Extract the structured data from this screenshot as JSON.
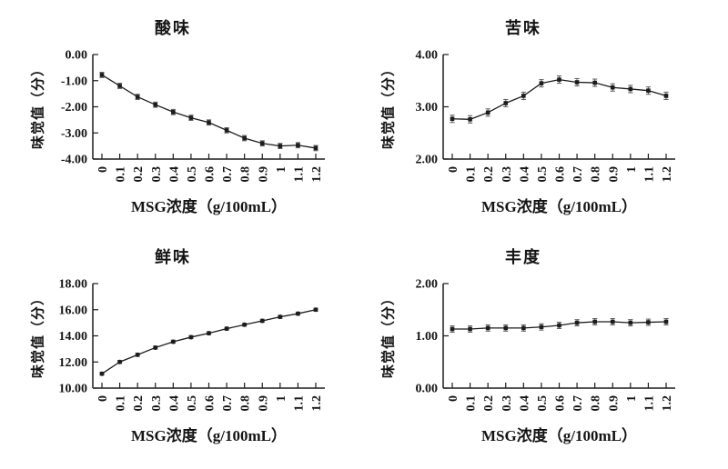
{
  "page": {
    "background": "#ffffff",
    "text_color": "#141414"
  },
  "chart_data": [
    {
      "type": "line",
      "title": "酸味",
      "xlabel": "MSG浓度（g/100mL）",
      "ylabel": "味觉值（分）",
      "x": [
        "0",
        "0.1",
        "0.2",
        "0.3",
        "0.4",
        "0.5",
        "0.6",
        "0.7",
        "0.8",
        "0.9",
        "1",
        "1.1",
        "1.2"
      ],
      "values": [
        -0.78,
        -1.2,
        -1.62,
        -1.92,
        -2.2,
        -2.42,
        -2.6,
        -2.9,
        -3.2,
        -3.4,
        -3.5,
        -3.47,
        -3.58
      ],
      "error": 0.1,
      "ylim": [
        -4,
        0
      ],
      "yticks": [
        0,
        -1,
        -2,
        -3,
        -4
      ],
      "ytick_labels": [
        "0.00",
        "-1.00",
        "-2.00",
        "-3.00",
        "-4.00"
      ],
      "marker": "square",
      "line_color": "#1c1c1c",
      "error_color": "#5a5a5a",
      "grid": false,
      "legend": "none"
    },
    {
      "type": "line",
      "title": "苦味",
      "xlabel": "MSG浓度（g/100mL）",
      "ylabel": "味觉值（分）",
      "x": [
        "0",
        "0.1",
        "0.2",
        "0.3",
        "0.4",
        "0.5",
        "0.6",
        "0.7",
        "0.8",
        "0.9",
        "1",
        "1.1",
        "1.2"
      ],
      "values": [
        2.77,
        2.76,
        2.89,
        3.07,
        3.21,
        3.45,
        3.52,
        3.47,
        3.46,
        3.37,
        3.34,
        3.31,
        3.21
      ],
      "error": 0.07,
      "ylim": [
        2,
        4
      ],
      "yticks": [
        4,
        3,
        2
      ],
      "ytick_labels": [
        "4.00",
        "3.00",
        "2.00"
      ],
      "marker": "square",
      "line_color": "#1c1c1c",
      "error_color": "#5a5a5a",
      "grid": false,
      "legend": "none"
    },
    {
      "type": "line",
      "title": "鲜味",
      "xlabel": "MSG浓度（g/100mL）",
      "ylabel": "味觉值（分）",
      "x": [
        "0",
        "0.1",
        "0.2",
        "0.3",
        "0.4",
        "0.5",
        "0.6",
        "0.7",
        "0.8",
        "0.9",
        "1",
        "1.1",
        "1.2"
      ],
      "values": [
        11.1,
        12.0,
        12.55,
        13.1,
        13.55,
        13.9,
        14.2,
        14.55,
        14.85,
        15.15,
        15.45,
        15.7,
        16.0
      ],
      "error": 0.12,
      "ylim": [
        10,
        18
      ],
      "yticks": [
        18,
        16,
        14,
        12,
        10
      ],
      "ytick_labels": [
        "18.00",
        "16.00",
        "14.00",
        "12.00",
        "10.00"
      ],
      "marker": "circle",
      "line_color": "#1c1c1c",
      "error_color": "#5a5a5a",
      "grid": false,
      "legend": "none"
    },
    {
      "type": "line",
      "title": "丰度",
      "xlabel": "MSG浓度（g/100mL）",
      "ylabel": "味觉值（分）",
      "x": [
        "0",
        "0.1",
        "0.2",
        "0.3",
        "0.4",
        "0.5",
        "0.6",
        "0.7",
        "0.8",
        "0.9",
        "1",
        "1.1",
        "1.2"
      ],
      "values": [
        1.13,
        1.13,
        1.15,
        1.15,
        1.15,
        1.17,
        1.2,
        1.25,
        1.27,
        1.27,
        1.25,
        1.26,
        1.27
      ],
      "error": 0.06,
      "ylim": [
        0,
        2
      ],
      "yticks": [
        2,
        1,
        0
      ],
      "ytick_labels": [
        "2.00",
        "1.00",
        "0.00"
      ],
      "marker": "square",
      "line_color": "#1c1c1c",
      "error_color": "#5a5a5a",
      "grid": false,
      "legend": "none"
    }
  ]
}
